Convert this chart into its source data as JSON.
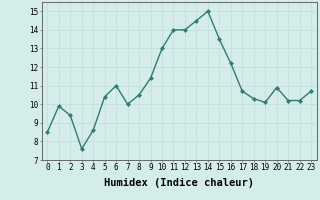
{
  "x": [
    0,
    1,
    2,
    3,
    4,
    5,
    6,
    7,
    8,
    9,
    10,
    11,
    12,
    13,
    14,
    15,
    16,
    17,
    18,
    19,
    20,
    21,
    22,
    23
  ],
  "y": [
    8.5,
    9.9,
    9.4,
    7.6,
    8.6,
    10.4,
    11.0,
    10.0,
    10.5,
    11.4,
    13.0,
    14.0,
    14.0,
    14.5,
    15.0,
    13.5,
    12.2,
    10.7,
    10.3,
    10.1,
    10.9,
    10.2,
    10.2,
    10.7
  ],
  "line_color": "#2e7d6e",
  "marker": "D",
  "marker_size": 2.0,
  "line_width": 1.0,
  "xlabel": "Humidex (Indice chaleur)",
  "xlabel_fontsize": 7.5,
  "xlabel_fontweight": "bold",
  "xlim": [
    -0.5,
    23.5
  ],
  "ylim": [
    7,
    15.5
  ],
  "yticks": [
    7,
    8,
    9,
    10,
    11,
    12,
    13,
    14,
    15
  ],
  "xticks": [
    0,
    1,
    2,
    3,
    4,
    5,
    6,
    7,
    8,
    9,
    10,
    11,
    12,
    13,
    14,
    15,
    16,
    17,
    18,
    19,
    20,
    21,
    22,
    23
  ],
  "background_color": "#d4edea",
  "grid_color": "#c0ddd9",
  "tick_fontsize": 5.5,
  "spine_color": "#666666",
  "font_family": "monospace"
}
